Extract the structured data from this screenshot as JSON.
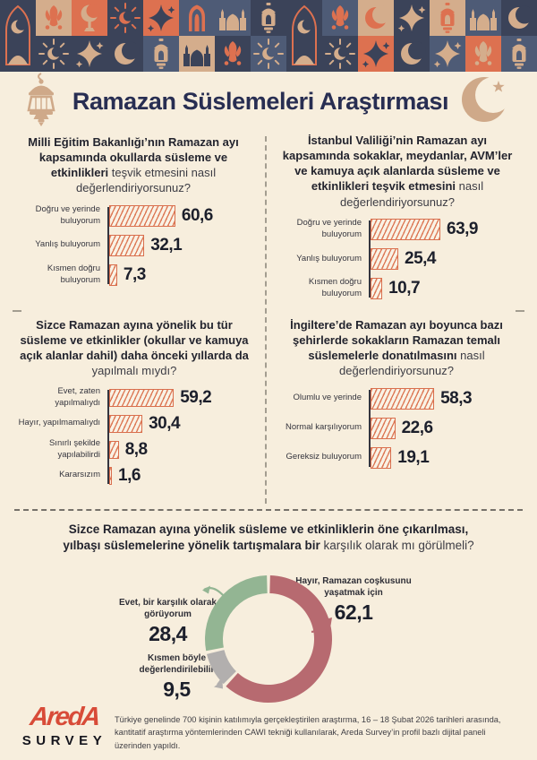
{
  "header": {
    "title": "Ramazan Süslemeleri Araştırması"
  },
  "palette": {
    "navy": "#3b4359",
    "slate": "#4e5b76",
    "orange": "#dd7150",
    "beige": "#d4ad8c",
    "cream": "#f7eedd",
    "rose": "#b76a70",
    "green": "#93b593",
    "gray": "#b2afae",
    "logo_red": "#d84b38",
    "bar_border": "#d96f4e",
    "title_navy": "#282e52"
  },
  "decor": {
    "columns": [
      {
        "tall": {
          "bg": "navy",
          "motif": "arch-scene",
          "fg": "beige"
        }
      },
      {
        "top": {
          "bg": "beige",
          "motif": "tulip",
          "fg": "orange"
        },
        "bottom": {
          "bg": "navy",
          "motif": "sunburst-crescent",
          "fg": "beige"
        }
      },
      {
        "top": {
          "bg": "orange",
          "motif": "crescent-stem",
          "fg": "beige"
        },
        "bottom": {
          "bg": "navy",
          "motif": "star4",
          "fg": "beige"
        }
      },
      {
        "top": {
          "bg": "navy",
          "motif": "sunburst-crescent",
          "fg": "orange"
        },
        "bottom": {
          "bg": "navy",
          "motif": "crescent",
          "fg": "beige"
        }
      },
      {
        "top": {
          "bg": "orange",
          "motif": "star4",
          "fg": "navy"
        },
        "bottom": {
          "bg": "slate",
          "motif": "lantern",
          "fg": "beige"
        }
      },
      {
        "top": {
          "bg": "slate",
          "motif": "arch-window",
          "fg": "orange"
        },
        "bottom": {
          "bg": "beige",
          "motif": "mosque",
          "fg": "navy"
        }
      },
      {
        "top": {
          "bg": "slate",
          "motif": "mosque",
          "fg": "beige"
        },
        "bottom": {
          "bg": "navy",
          "motif": "tulip",
          "fg": "orange"
        }
      },
      {
        "top": {
          "bg": "navy",
          "motif": "lantern",
          "fg": "beige"
        },
        "bottom": {
          "bg": "slate",
          "motif": "sunburst-crescent",
          "fg": "beige"
        }
      },
      {
        "tall": {
          "bg": "navy",
          "motif": "arch-scene",
          "fg": "beige"
        }
      },
      {
        "top": {
          "bg": "slate",
          "motif": "tulip",
          "fg": "orange"
        },
        "bottom": {
          "bg": "navy",
          "motif": "sunburst-crescent",
          "fg": "beige"
        }
      },
      {
        "top": {
          "bg": "beige",
          "motif": "crescent",
          "fg": "orange"
        },
        "bottom": {
          "bg": "orange",
          "motif": "star4",
          "fg": "navy"
        }
      },
      {
        "top": {
          "bg": "navy",
          "motif": "star4",
          "fg": "beige"
        },
        "bottom": {
          "bg": "navy",
          "motif": "crescent",
          "fg": "beige"
        }
      },
      {
        "top": {
          "bg": "beige",
          "motif": "lantern",
          "fg": "orange"
        },
        "bottom": {
          "bg": "slate",
          "motif": "star4",
          "fg": "beige"
        }
      },
      {
        "top": {
          "bg": "slate",
          "motif": "mosque",
          "fg": "beige"
        },
        "bottom": {
          "bg": "orange",
          "motif": "tulip",
          "fg": "beige"
        }
      },
      {
        "top": {
          "bg": "navy",
          "motif": "crescent",
          "fg": "beige"
        },
        "bottom": {
          "bg": "slate",
          "motif": "lantern",
          "fg": "beige"
        }
      }
    ]
  },
  "chart_data": [
    {
      "type": "bar",
      "orientation": "horizontal",
      "title_bold": "Milli Eğitim Bakanlığı’nın Ramazan ayı kapsamında okullarda süsleme ve etkinlikleri",
      "title_regular": "teşvik etmesini nasıl değerlendiriyorsunuz?",
      "categories": [
        "Doğru ve yerinde buluyorum",
        "Yanlış buluyorum",
        "Kısmen doğru buluyorum"
      ],
      "values": [
        60.6,
        32.1,
        7.3
      ],
      "value_labels": [
        "60,6",
        "32,1",
        "7,3"
      ],
      "xlim": [
        0,
        100
      ],
      "unit": "percent"
    },
    {
      "type": "bar",
      "orientation": "horizontal",
      "title_bold": "İstanbul Valiliği’nin Ramazan ayı kapsamında sokaklar, meydanlar, AVM’ler ve kamuya açık alanlarda süsleme ve etkinlikleri teşvik etmesini",
      "title_regular": "nasıl değerlendiriyorsunuz?",
      "categories": [
        "Doğru ve yerinde buluyorum",
        "Yanlış buluyorum",
        "Kısmen doğru buluyorum"
      ],
      "values": [
        63.9,
        25.4,
        10.7
      ],
      "value_labels": [
        "63,9",
        "25,4",
        "10,7"
      ],
      "xlim": [
        0,
        100
      ],
      "unit": "percent"
    },
    {
      "type": "bar",
      "orientation": "horizontal",
      "title_bold": "Sizce Ramazan ayına yönelik bu tür süsleme ve etkinlikler (okullar ve kamuya açık alanlar dahil) daha önceki yıllarda da",
      "title_regular": "yapılmalı mıydı?",
      "categories": [
        "Evet, zaten yapılmalıydı",
        "Hayır, yapılmamalıydı",
        "Sınırlı şekilde yapılabilirdi",
        "Kararsızım"
      ],
      "values": [
        59.2,
        30.4,
        8.8,
        1.6
      ],
      "value_labels": [
        "59,2",
        "30,4",
        "8,8",
        "1,6"
      ],
      "xlim": [
        0,
        100
      ],
      "unit": "percent"
    },
    {
      "type": "bar",
      "orientation": "horizontal",
      "title_bold": "İngiltere’de Ramazan ayı boyunca bazı şehirlerde sokakların Ramazan temalı süslemelerle donatılmasını",
      "title_regular": "nasıl değerlendiriyorsunuz?",
      "categories": [
        "Olumlu ve yerinde",
        "Normal karşılıyorum",
        "Gereksiz buluyorum"
      ],
      "values": [
        58.3,
        22.6,
        19.1
      ],
      "value_labels": [
        "58,3",
        "22,6",
        "19,1"
      ],
      "xlim": [
        0,
        100
      ],
      "unit": "percent"
    },
    {
      "type": "pie",
      "subtype": "donut",
      "title_bold": "Sizce Ramazan ayına yönelik süsleme ve etkinliklerin öne çıkarılması, yılbaşı süslemelerine yönelik tartışmalara bir",
      "title_regular": "karşılık olarak mı görülmeli?",
      "slices": [
        {
          "label": "Hayır, Ramazan coşkusunu yaşatmak için",
          "value": 62.1,
          "value_label": "62,1",
          "color": "#b76a70"
        },
        {
          "label": "Kısmen böyle değerlendirilebilir",
          "value": 9.5,
          "value_label": "9,5",
          "color": "#b2afae"
        },
        {
          "label": "Evet, bir karşılık olarak görüyorum",
          "value": 28.4,
          "value_label": "28,4",
          "color": "#93b593"
        }
      ],
      "start_angle_deg": 0,
      "direction": "clockwise"
    }
  ],
  "footer": {
    "logo_line1": "AredA",
    "logo_line2": "SURVEY",
    "note": "Türkiye genelinde 700 kişinin katılımıyla gerçekleştirilen araştırma, 16 – 18 Şubat 2026 tarihleri arasında, kantitatif araştırma yöntemlerinden CAWI tekniği kullanılarak, Areda Survey’in profil bazlı dijital paneli üzerinden yapıldı."
  }
}
